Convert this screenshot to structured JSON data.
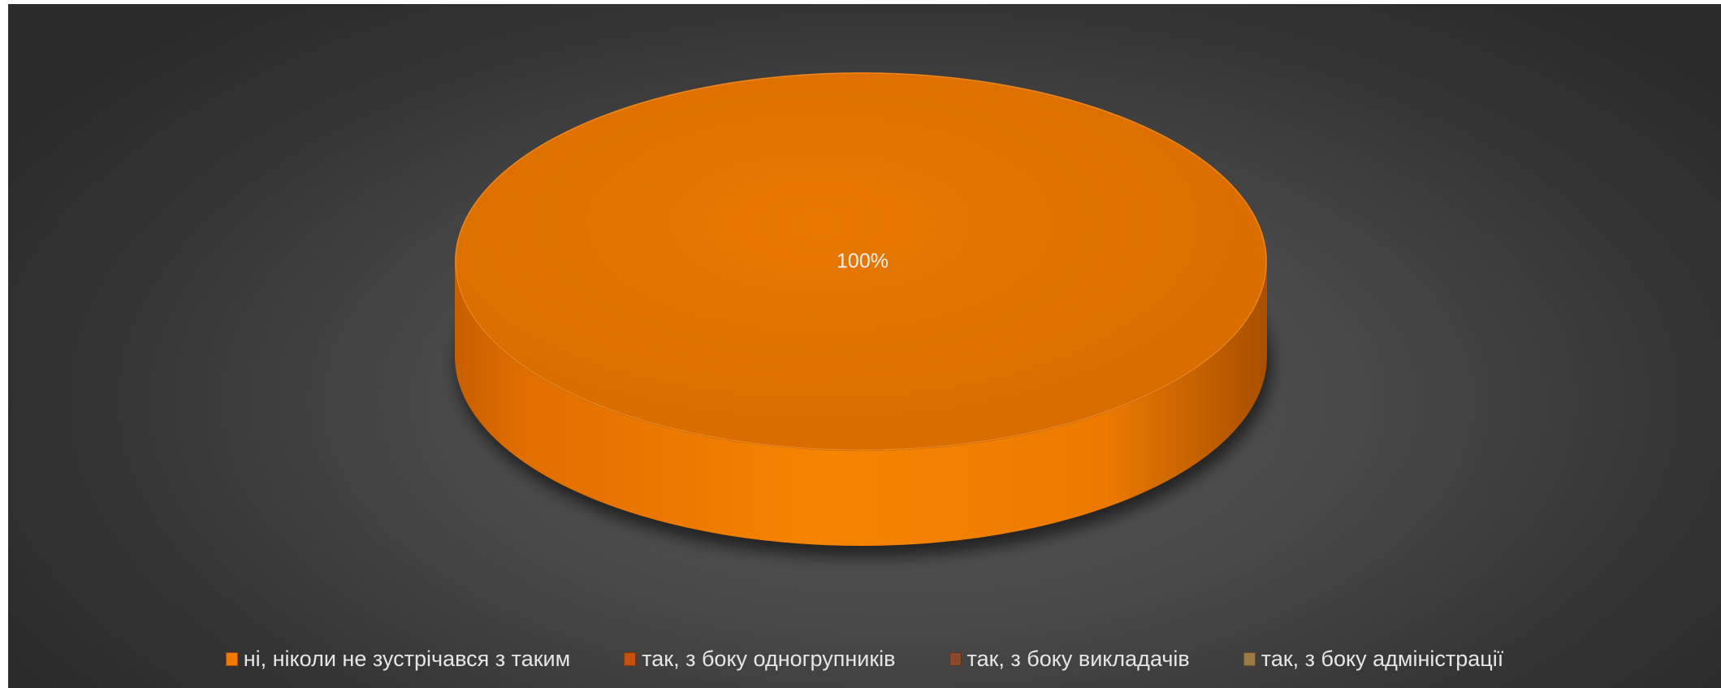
{
  "chart_data": {
    "type": "pie",
    "style": "3d",
    "title": "",
    "slices": [
      {
        "label": "ні, ніколи не зустрічався з таким",
        "value": 100,
        "color": "#f07a00"
      },
      {
        "label": "так, з боку одногрупників",
        "value": 0,
        "color": "#c8500f"
      },
      {
        "label": "так, з боку викладачів",
        "value": 0,
        "color": "#8a4a2a"
      },
      {
        "label": "так, з боку адміністрації",
        "value": 0,
        "color": "#9b7a45"
      }
    ],
    "data_labels": [
      "100%"
    ],
    "legend_position": "bottom"
  }
}
